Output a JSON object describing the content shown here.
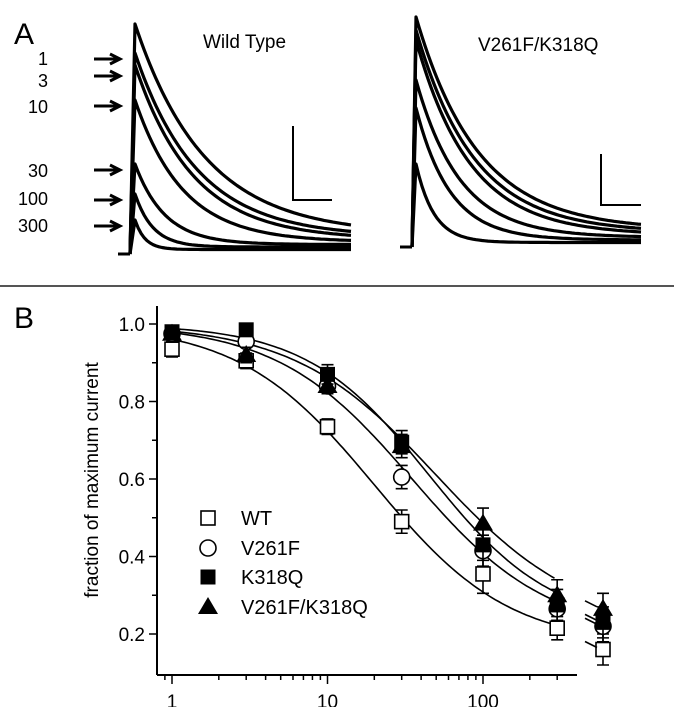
{
  "panel_a": {
    "label": "A",
    "traces": [
      {
        "title": "Wild Type",
        "arrow_labels": [
          "1",
          "3",
          "10",
          "30",
          "100",
          "300"
        ]
      },
      {
        "title": "V261F/K318Q"
      }
    ]
  },
  "panel_b": {
    "label": "B"
  },
  "chart_data": {
    "type": "scatter",
    "title": "",
    "xlabel": "",
    "ylabel": "fraction of maximum current",
    "xscale": "log",
    "xlim": [
      0.9,
      350
    ],
    "ylim": [
      0.15,
      1.05
    ],
    "xticks": [
      1,
      10,
      100
    ],
    "xtick_labels": [
      "1",
      "10",
      "100"
    ],
    "yticks": [
      0.2,
      0.4,
      0.6,
      0.8,
      1.0
    ],
    "ytick_labels": [
      "0.2",
      "0.4",
      "0.6",
      "0.8",
      "1.0"
    ],
    "grid": false,
    "legend_position": "bottom-left",
    "x": [
      1,
      3,
      10,
      30,
      100,
      300
    ],
    "series": [
      {
        "name": "WT",
        "marker": "open-square",
        "values": [
          0.935,
          0.905,
          0.735,
          0.49,
          0.355,
          0.215
        ],
        "errors": [
          0.02,
          0.02,
          0.02,
          0.03,
          0.05,
          0.03
        ],
        "recovery": 0.16,
        "recovery_error": 0.04,
        "ic50": 20,
        "hill": 1.0,
        "bottom": 0.17
      },
      {
        "name": "V261F",
        "marker": "open-circle",
        "values": [
          0.975,
          0.955,
          0.84,
          0.605,
          0.415,
          0.265
        ],
        "errors": [
          0.01,
          0.01,
          0.02,
          0.03,
          0.04,
          0.03
        ],
        "recovery": 0.22,
        "recovery_error": 0.04,
        "ic50": 35,
        "hill": 1.0,
        "bottom": 0.2
      },
      {
        "name": "K318Q",
        "marker": "filled-square",
        "values": [
          0.98,
          0.985,
          0.87,
          0.695,
          0.43,
          0.275
        ],
        "errors": [
          0.01,
          0.01,
          0.025,
          0.03,
          0.04,
          0.04
        ],
        "recovery": 0.23,
        "recovery_error": 0.04,
        "ic50": 45,
        "hill": 1.1,
        "bottom": 0.22
      },
      {
        "name": "V261F/K318Q",
        "marker": "filled-triangle",
        "values": [
          0.975,
          0.92,
          0.84,
          0.685,
          0.485,
          0.3
        ],
        "errors": [
          0.01,
          0.02,
          0.02,
          0.03,
          0.04,
          0.04
        ],
        "recovery": 0.265,
        "recovery_error": 0.04,
        "ic50": 50,
        "hill": 0.95,
        "bottom": 0.22
      }
    ]
  }
}
